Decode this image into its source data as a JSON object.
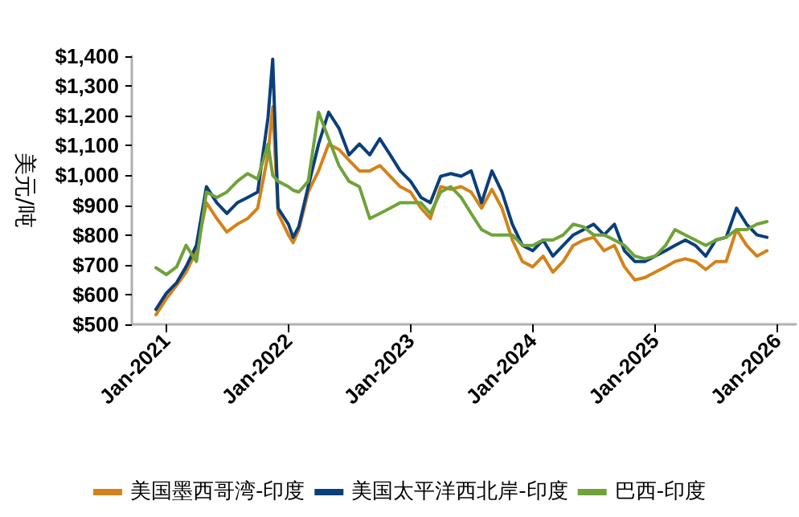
{
  "chart_data": {
    "type": "line",
    "ylabel": "美元/吨",
    "x": [
      "2020-12-01",
      "2021-01-01",
      "2021-02-01",
      "2021-03-01",
      "2021-04-01",
      "2021-05-01",
      "2021-06-01",
      "2021-07-01",
      "2021-08-01",
      "2021-09-01",
      "2021-10-01",
      "2021-11-01",
      "2021-11-15",
      "2021-12-01",
      "2022-01-01",
      "2022-01-15",
      "2022-02-01",
      "2022-03-01",
      "2022-04-01",
      "2022-05-01",
      "2022-06-01",
      "2022-07-01",
      "2022-08-01",
      "2022-09-01",
      "2022-10-01",
      "2022-11-01",
      "2022-12-01",
      "2023-01-01",
      "2023-02-01",
      "2023-03-01",
      "2023-04-01",
      "2023-05-01",
      "2023-06-01",
      "2023-07-01",
      "2023-08-01",
      "2023-09-01",
      "2023-10-01",
      "2023-11-01",
      "2023-12-01",
      "2024-01-01",
      "2024-02-01",
      "2024-03-01",
      "2024-04-01",
      "2024-05-01",
      "2024-06-01",
      "2024-07-01",
      "2024-08-01",
      "2024-09-01",
      "2024-10-01",
      "2024-11-01",
      "2024-12-01",
      "2025-01-01",
      "2025-02-01",
      "2025-03-01",
      "2025-04-01",
      "2025-05-01",
      "2025-06-01",
      "2025-07-01",
      "2025-08-01",
      "2025-09-01",
      "2025-10-01",
      "2025-11-01",
      "2025-12-01"
    ],
    "series": [
      {
        "name": "美国墨西哥湾-印度",
        "color": "#d4821a",
        "values": [
          532,
          586,
          631,
          675,
          747,
          908,
          855,
          810,
          836,
          855,
          890,
          1069,
          1230,
          872,
          800,
          774,
          818,
          944,
          1015,
          1105,
          1087,
          1051,
          1015,
          1015,
          1033,
          997,
          962,
          944,
          890,
          855,
          962,
          953,
          962,
          944,
          890,
          953,
          890,
          783,
          711,
          693,
          729,
          675,
          711,
          765,
          783,
          792,
          747,
          765,
          693,
          649,
          657,
          675,
          693,
          711,
          720,
          711,
          684,
          711,
          711,
          818,
          765,
          729,
          747
        ]
      },
      {
        "name": "美国太平洋西北岸-印度",
        "color": "#0b3f7a",
        "values": [
          550,
          604,
          640,
          693,
          765,
          962,
          908,
          872,
          908,
          926,
          944,
          1194,
          1390,
          890,
          836,
          792,
          828,
          962,
          1105,
          1212,
          1158,
          1069,
          1105,
          1069,
          1123,
          1069,
          1015,
          980,
          926,
          908,
          997,
          1006,
          997,
          1015,
          908,
          1015,
          944,
          836,
          765,
          747,
          783,
          729,
          765,
          800,
          818,
          836,
          800,
          836,
          747,
          711,
          711,
          729,
          747,
          765,
          783,
          765,
          729,
          783,
          792,
          890,
          836,
          800,
          792
        ]
      },
      {
        "name": "巴西-印度",
        "color": "#6fa33a",
        "values": [
          690,
          667,
          693,
          765,
          711,
          944,
          926,
          944,
          980,
          1006,
          988,
          1105,
          1000,
          980,
          962,
          950,
          944,
          980,
          1212,
          1123,
          1033,
          980,
          962,
          855,
          872,
          890,
          908,
          908,
          908,
          872,
          944,
          962,
          926,
          872,
          818,
          800,
          800,
          800,
          765,
          765,
          783,
          783,
          800,
          836,
          827,
          800,
          800,
          783,
          765,
          729,
          720,
          729,
          765,
          818,
          800,
          783,
          765,
          783,
          792,
          818,
          818,
          836,
          845
        ]
      }
    ],
    "xlim": [
      "2020-09-20",
      "2026-02-25"
    ],
    "xticks": [
      {
        "value": "2021-01-01",
        "label": "Jan-2021"
      },
      {
        "value": "2022-01-01",
        "label": "Jan-2022"
      },
      {
        "value": "2023-01-01",
        "label": "Jan-2023"
      },
      {
        "value": "2024-01-01",
        "label": "Jan-2024"
      },
      {
        "value": "2025-01-01",
        "label": "Jan-2025"
      },
      {
        "value": "2026-01-01",
        "label": "Jan-2026"
      }
    ],
    "ylim": [
      500,
      1400
    ],
    "yticks": [
      {
        "value": 500,
        "label": "$500"
      },
      {
        "value": 600,
        "label": "$600"
      },
      {
        "value": 700,
        "label": "$700"
      },
      {
        "value": 800,
        "label": "$800"
      },
      {
        "value": 900,
        "label": "$900"
      },
      {
        "value": 1000,
        "label": "$1,000"
      },
      {
        "value": 1100,
        "label": "$1,100"
      },
      {
        "value": 1200,
        "label": "$1,200"
      },
      {
        "value": 1300,
        "label": "$1,300"
      },
      {
        "value": 1400,
        "label": "$1,400"
      }
    ],
    "grid": false,
    "legend": "bottom",
    "marker": "none",
    "line_style": "solid"
  }
}
